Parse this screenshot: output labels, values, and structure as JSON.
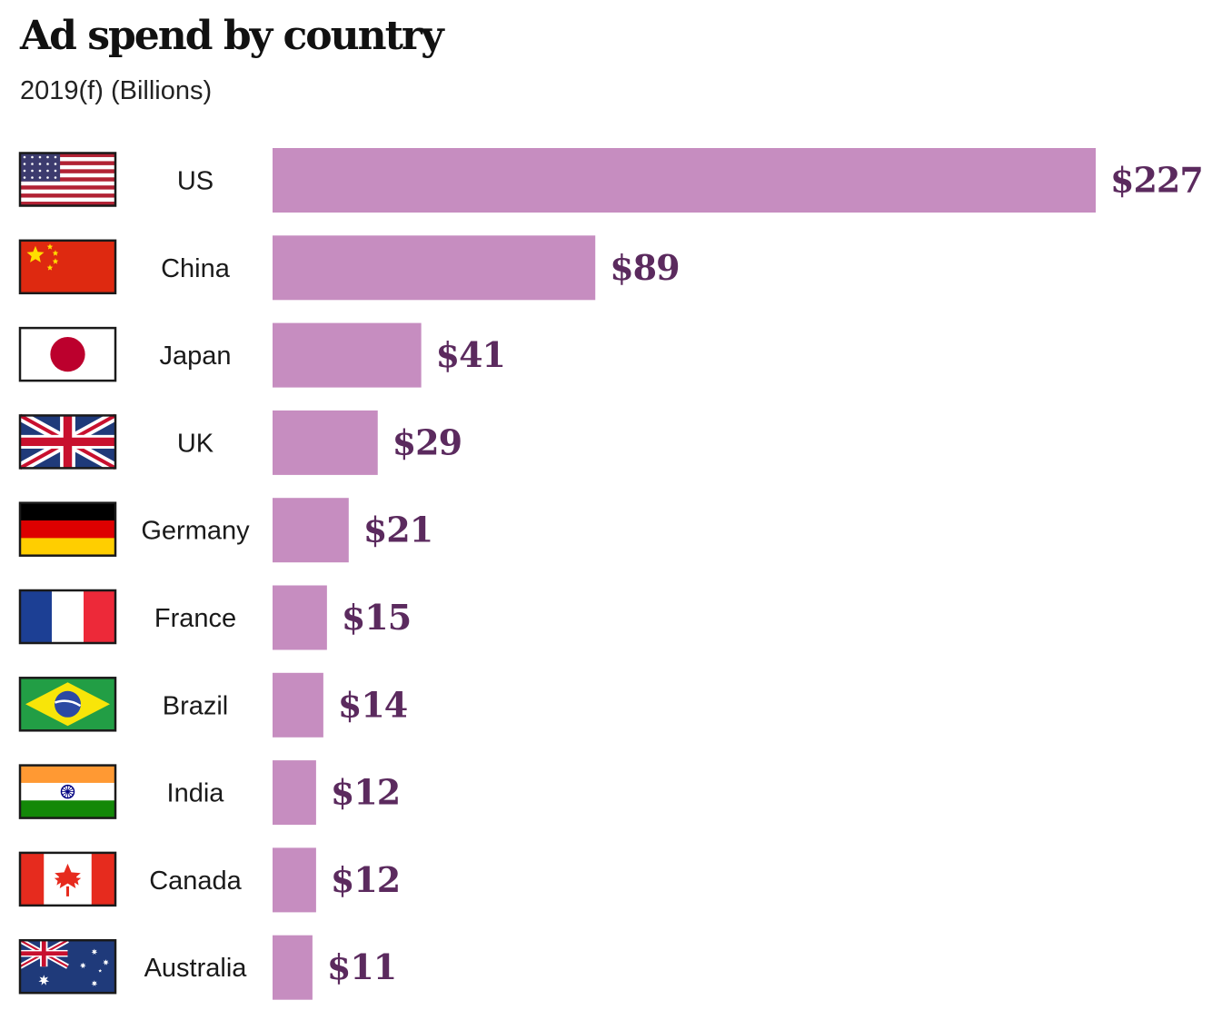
{
  "chart_data": {
    "type": "bar",
    "orientation": "horizontal",
    "title": "Ad spend by country",
    "subtitle": "2019(f) (Billions)",
    "categories": [
      "US",
      "China",
      "Japan",
      "UK",
      "Germany",
      "France",
      "Brazil",
      "India",
      "Canada",
      "Australia"
    ],
    "values": [
      227,
      89,
      41,
      29,
      21,
      15,
      14,
      12,
      12,
      11
    ],
    "value_labels": [
      "$227",
      "$89",
      "$41",
      "$29",
      "$21",
      "$15",
      "$14",
      "$12",
      "$12",
      "$11"
    ],
    "flags": [
      "us-flag-icon",
      "china-flag-icon",
      "japan-flag-icon",
      "uk-flag-icon",
      "germany-flag-icon",
      "france-flag-icon",
      "brazil-flag-icon",
      "india-flag-icon",
      "canada-flag-icon",
      "australia-flag-icon"
    ],
    "xlim": [
      0,
      227
    ],
    "grid": false,
    "legend": "none",
    "colors": {
      "bar": "#c68dc0",
      "value_text": "#5b2a5e"
    }
  }
}
